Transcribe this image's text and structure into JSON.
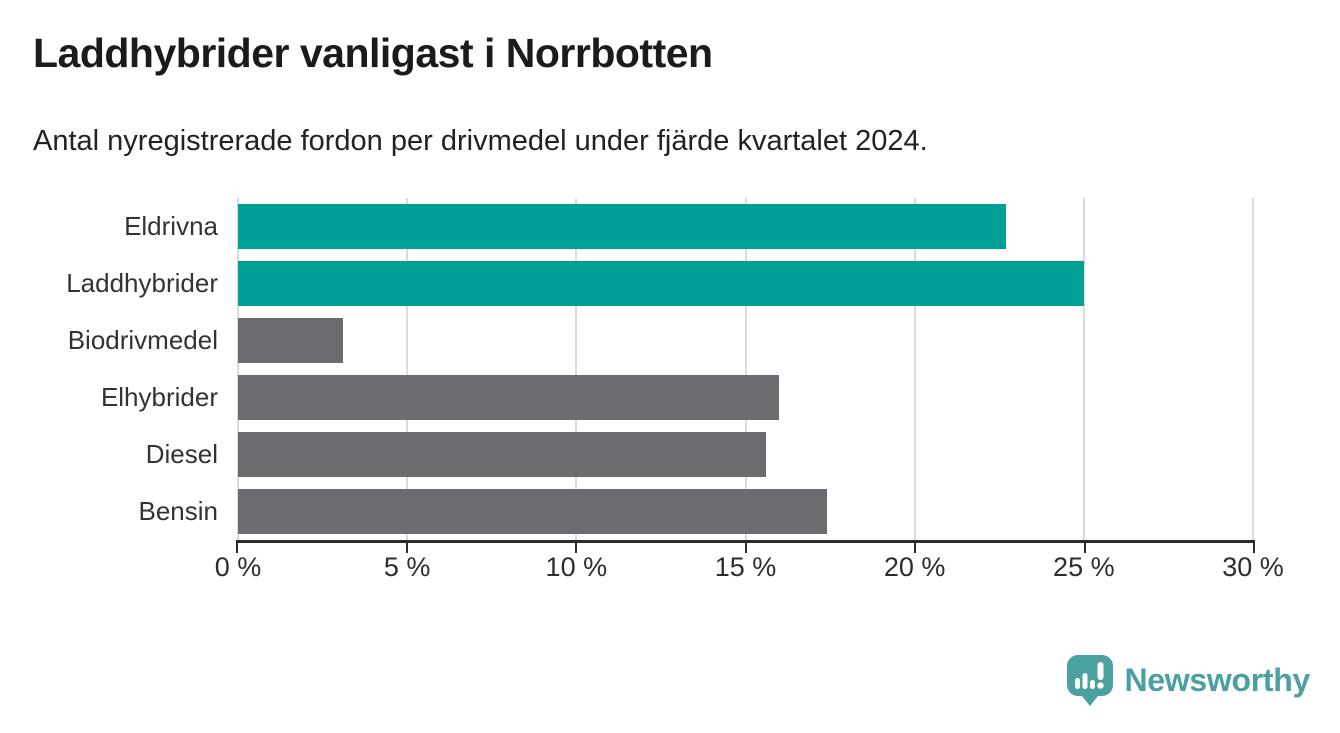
{
  "header": {
    "title": "Laddhybrider vanligast i Norrbotten",
    "subtitle": "Antal nyregistrerade fordon per drivmedel under fjärde kvartalet 2024."
  },
  "chart_data": {
    "type": "bar",
    "orientation": "horizontal",
    "title": "Laddhybrider vanligast i Norrbotten",
    "subtitle": "Antal nyregistrerade fordon per drivmedel under fjärde kvartalet 2024.",
    "categories": [
      "Eldrivna",
      "Laddhybrider",
      "Biodrivmedel",
      "Elhybrider",
      "Diesel",
      "Bensin"
    ],
    "values": [
      22.7,
      25.0,
      3.1,
      16.0,
      15.6,
      17.4
    ],
    "unit": "%",
    "xlabel": "",
    "ylabel": "",
    "xlim": [
      0,
      30
    ],
    "x_tick_values": [
      0,
      5,
      10,
      15,
      20,
      25,
      30
    ],
    "x_ticks": [
      "0 %",
      "5 %",
      "10 %",
      "15 %",
      "20 %",
      "25 %",
      "30 %"
    ],
    "grid": true,
    "legend": false,
    "colors": {
      "highlight": "#00A096",
      "default": "#6C6C70"
    },
    "bar_colors": [
      "highlight",
      "highlight",
      "default",
      "default",
      "default",
      "default"
    ]
  },
  "branding": {
    "logo_text": "Newsworthy",
    "logo_color": "#4BA0A0",
    "logo_icon": "speech-bubble-bar-chart-icon"
  }
}
